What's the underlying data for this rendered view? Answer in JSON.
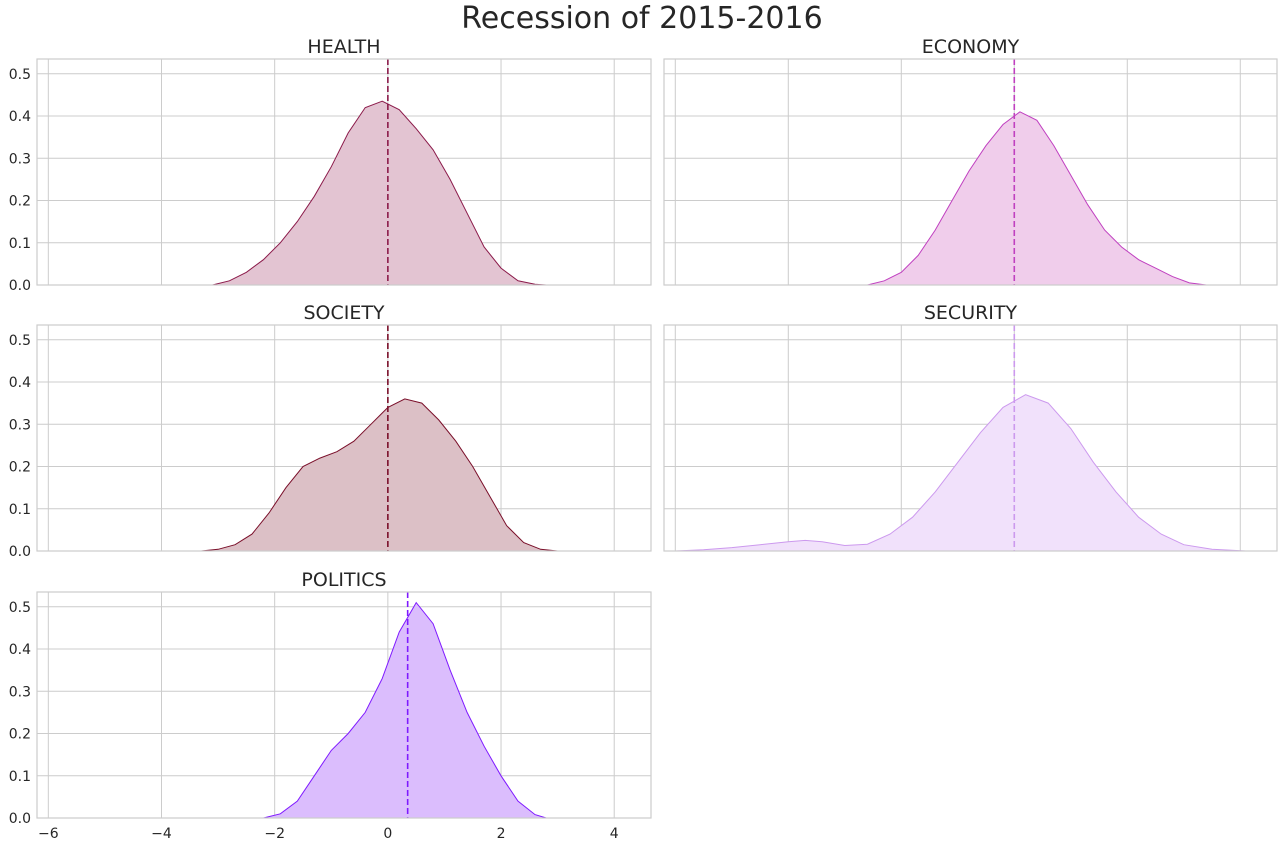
{
  "figure": {
    "title": "Recession of 2015-2016"
  },
  "axes": {
    "x_ticks": [
      -6,
      -4,
      -2,
      0,
      2,
      4
    ],
    "x_tick_labels": [
      "−6",
      "−4",
      "−2",
      "0",
      "2",
      "4"
    ],
    "y_ticks": [
      0.0,
      0.1,
      0.2,
      0.3,
      0.4,
      0.5
    ],
    "y_tick_labels": [
      "0.0",
      "0.1",
      "0.2",
      "0.3",
      "0.4",
      "0.5"
    ],
    "xlim": [
      -6.2,
      4.65
    ],
    "ylim": [
      0,
      0.535
    ],
    "grid": true
  },
  "chart_data": [
    {
      "type": "area",
      "title": "HEALTH",
      "color": "#8b1a4a",
      "fill": "#e3c4d2",
      "mean": 0.0,
      "x": [
        -3.1,
        -2.8,
        -2.5,
        -2.2,
        -1.9,
        -1.6,
        -1.3,
        -1.0,
        -0.7,
        -0.4,
        -0.1,
        0.2,
        0.5,
        0.8,
        1.1,
        1.4,
        1.7,
        2.0,
        2.3,
        2.6,
        2.8
      ],
      "y": [
        0.0,
        0.01,
        0.03,
        0.06,
        0.1,
        0.15,
        0.21,
        0.28,
        0.36,
        0.42,
        0.435,
        0.415,
        0.37,
        0.32,
        0.25,
        0.17,
        0.09,
        0.04,
        0.01,
        0.002,
        0.0
      ]
    },
    {
      "type": "area",
      "title": "ECONOMY",
      "color": "#c040c0",
      "fill": "#f0cdeb",
      "mean": 0.0,
      "x": [
        -2.6,
        -2.3,
        -2.0,
        -1.7,
        -1.4,
        -1.1,
        -0.8,
        -0.5,
        -0.2,
        0.1,
        0.4,
        0.7,
        1.0,
        1.3,
        1.6,
        1.9,
        2.2,
        2.5,
        2.8,
        3.1,
        3.4
      ],
      "y": [
        0.0,
        0.01,
        0.03,
        0.07,
        0.13,
        0.2,
        0.27,
        0.33,
        0.38,
        0.41,
        0.39,
        0.33,
        0.26,
        0.19,
        0.13,
        0.09,
        0.06,
        0.04,
        0.02,
        0.005,
        0.0
      ]
    },
    {
      "type": "area",
      "title": "SOCIETY",
      "color": "#7a0f2a",
      "fill": "#dcc0c6",
      "mean": 0.0,
      "x": [
        -3.3,
        -3.0,
        -2.7,
        -2.4,
        -2.1,
        -1.8,
        -1.5,
        -1.2,
        -0.9,
        -0.6,
        -0.3,
        0.0,
        0.3,
        0.6,
        0.9,
        1.2,
        1.5,
        1.8,
        2.1,
        2.4,
        2.7,
        3.0
      ],
      "y": [
        0.0,
        0.004,
        0.015,
        0.04,
        0.09,
        0.15,
        0.2,
        0.22,
        0.235,
        0.26,
        0.3,
        0.34,
        0.36,
        0.35,
        0.31,
        0.26,
        0.2,
        0.13,
        0.06,
        0.02,
        0.004,
        0.0
      ]
    },
    {
      "type": "area",
      "title": "SECURITY",
      "color": "#cc99ee",
      "fill": "#f1e1fb",
      "mean": 0.0,
      "x": [
        -6.0,
        -5.5,
        -5.0,
        -4.5,
        -4.0,
        -3.7,
        -3.4,
        -3.0,
        -2.6,
        -2.2,
        -1.8,
        -1.4,
        -1.0,
        -0.6,
        -0.2,
        0.2,
        0.6,
        1.0,
        1.4,
        1.8,
        2.2,
        2.6,
        3.0,
        3.5,
        4.1
      ],
      "y": [
        0.0,
        0.003,
        0.008,
        0.015,
        0.022,
        0.025,
        0.022,
        0.013,
        0.016,
        0.04,
        0.08,
        0.14,
        0.21,
        0.28,
        0.34,
        0.37,
        0.35,
        0.29,
        0.21,
        0.14,
        0.08,
        0.04,
        0.015,
        0.004,
        0.0
      ]
    },
    {
      "type": "area",
      "title": "POLITICS",
      "color": "#7f1aff",
      "fill": "#dbbdfd",
      "mean": 0.35,
      "x": [
        -2.2,
        -1.9,
        -1.6,
        -1.3,
        -1.0,
        -0.7,
        -0.4,
        -0.1,
        0.2,
        0.5,
        0.8,
        1.1,
        1.4,
        1.7,
        2.0,
        2.3,
        2.6,
        2.8
      ],
      "y": [
        0.0,
        0.01,
        0.04,
        0.1,
        0.16,
        0.2,
        0.25,
        0.33,
        0.44,
        0.51,
        0.46,
        0.35,
        0.25,
        0.17,
        0.1,
        0.04,
        0.008,
        0.0
      ]
    }
  ]
}
